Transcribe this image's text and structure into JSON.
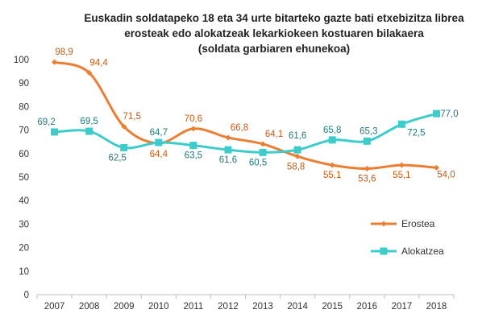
{
  "chart_data": {
    "type": "line",
    "title_lines": [
      "Euskadin soldatapeko 18 eta 34 urte bitarteko gazte bati etxebizitza librea",
      "erosteak edo alokatzeak lekarkiokeen kostuaren bilakaera",
      "(soldata garbiaren ehunekoa)"
    ],
    "categories": [
      "2007",
      "2008",
      "2009",
      "2010",
      "2011",
      "2012",
      "2013",
      "2014",
      "2015",
      "2016",
      "2017",
      "2018"
    ],
    "ylim": [
      0,
      100
    ],
    "yticks": [
      0,
      10,
      20,
      30,
      40,
      50,
      60,
      70,
      80,
      90,
      100
    ],
    "grid": false,
    "legend_position": "right",
    "series": [
      {
        "name": "Erostea",
        "color": "#ED7D31",
        "label_color": "#C55A11",
        "marker": "diamond",
        "values": [
          98.9,
          94.4,
          71.5,
          64.4,
          70.6,
          66.8,
          64.1,
          58.8,
          55.1,
          53.6,
          55.1,
          54.0
        ],
        "labels": [
          "98,9",
          "94,4",
          "71,5",
          "64,4",
          "70,6",
          "66,8",
          "64,1",
          "58,8",
          "55,1",
          "53,6",
          "55,1",
          "54,0"
        ]
      },
      {
        "name": "Alokatzea",
        "color": "#3CCCCC",
        "label_color": "#1F7A7A",
        "marker": "square",
        "values": [
          69.2,
          69.5,
          62.5,
          64.7,
          63.5,
          61.6,
          60.5,
          61.6,
          65.8,
          65.3,
          72.5,
          77.0
        ],
        "labels": [
          "69,2",
          "69,5",
          "62,5",
          "64,7",
          "63,5",
          "61,6",
          "60,5",
          "61,6",
          "65,8",
          "65,3",
          "72,5",
          "77,0"
        ]
      }
    ]
  }
}
